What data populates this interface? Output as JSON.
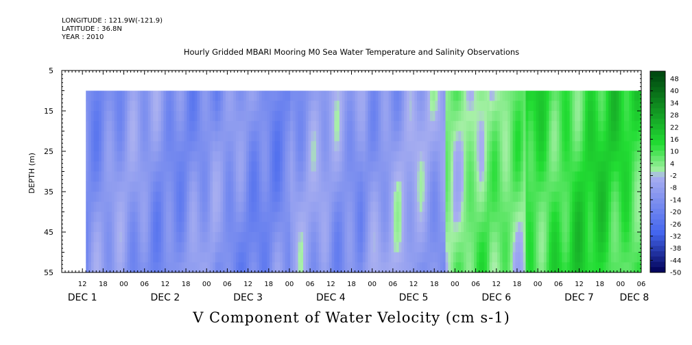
{
  "header": {
    "longitude": "LONGITUDE : 121.9W(-121.9)",
    "latitude": "LATITUDE : 36.8N",
    "year": "YEAR : 2010"
  },
  "chart_data": {
    "type": "heatmap",
    "title": "Hourly Gridded MBARI Mooring M0 Sea Water Temperature and Salinity Observations",
    "xlabel": "V Component of Water Velocity (cm s-1)",
    "ylabel": "DEPTH (m)",
    "y_range": [
      55,
      5
    ],
    "y_ticks": [
      5,
      15,
      25,
      35,
      45,
      55
    ],
    "x_hour_range": [
      6,
      174
    ],
    "x_hour_labels": [
      {
        "h": 12,
        "label": "12"
      },
      {
        "h": 18,
        "label": "18"
      },
      {
        "h": 24,
        "label": "00"
      },
      {
        "h": 30,
        "label": "06"
      },
      {
        "h": 36,
        "label": "12"
      },
      {
        "h": 42,
        "label": "18"
      },
      {
        "h": 48,
        "label": "00"
      },
      {
        "h": 54,
        "label": "06"
      },
      {
        "h": 60,
        "label": "12"
      },
      {
        "h": 66,
        "label": "18"
      },
      {
        "h": 72,
        "label": "00"
      },
      {
        "h": 78,
        "label": "06"
      },
      {
        "h": 84,
        "label": "12"
      },
      {
        "h": 90,
        "label": "18"
      },
      {
        "h": 96,
        "label": "00"
      },
      {
        "h": 102,
        "label": "06"
      },
      {
        "h": 108,
        "label": "12"
      },
      {
        "h": 114,
        "label": "18"
      },
      {
        "h": 120,
        "label": "00"
      },
      {
        "h": 126,
        "label": "06"
      },
      {
        "h": 132,
        "label": "12"
      },
      {
        "h": 138,
        "label": "18"
      },
      {
        "h": 144,
        "label": "00"
      },
      {
        "h": 150,
        "label": "06"
      },
      {
        "h": 156,
        "label": "12"
      },
      {
        "h": 162,
        "label": "18"
      },
      {
        "h": 168,
        "label": "00"
      },
      {
        "h": 174,
        "label": "06"
      }
    ],
    "x_day_labels": [
      {
        "h": 12,
        "label": "DEC  1"
      },
      {
        "h": 36,
        "label": "DEC  2"
      },
      {
        "h": 60,
        "label": "DEC  3"
      },
      {
        "h": 84,
        "label": "DEC  4"
      },
      {
        "h": 108,
        "label": "DEC  5"
      },
      {
        "h": 132,
        "label": "DEC  6"
      },
      {
        "h": 156,
        "label": "DEC  7"
      },
      {
        "h": 172,
        "label": "DEC  8"
      }
    ],
    "data_extent": {
      "hour_start": 13,
      "hour_end": 175,
      "depth_top": 10,
      "depth_bottom": 55
    },
    "colorbar": {
      "labels": [
        "48",
        "40",
        "34",
        "28",
        "22",
        "16",
        "10",
        "4",
        "-2",
        "-8",
        "-14",
        "-20",
        "-26",
        "-32",
        "-38",
        "-44",
        "-50"
      ],
      "low_color": "#000055",
      "mid_low_color": "#4466ee",
      "zero_low_color": "#aab0f0",
      "zero_high_color": "#a8f0a8",
      "mid_high_color": "#22dd33",
      "high_color": "#004a10"
    },
    "approx_mean_values": [
      {
        "hour_start": 13,
        "hour_end": 50,
        "value": -12
      },
      {
        "hour_start": 50,
        "hour_end": 72,
        "value": -14
      },
      {
        "hour_start": 72,
        "hour_end": 93,
        "value": -10
      },
      {
        "hour_start": 93,
        "hour_end": 117,
        "value": -8
      },
      {
        "hour_start": 117,
        "hour_end": 130,
        "value": 6
      },
      {
        "hour_start": 130,
        "hour_end": 140,
        "value": 4
      },
      {
        "hour_start": 140,
        "hour_end": 175,
        "value": 14
      }
    ]
  }
}
